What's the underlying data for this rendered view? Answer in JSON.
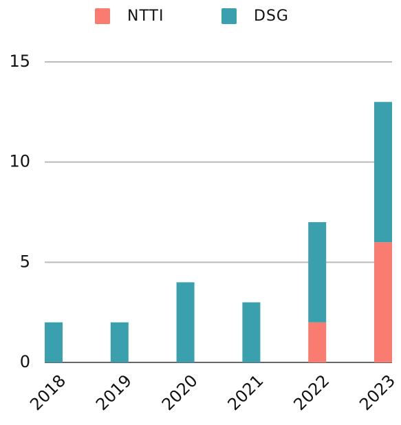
{
  "chart_data": {
    "type": "stacked_bar",
    "categories": [
      "2018",
      "2019",
      "2020",
      "2021",
      "2022",
      "2023"
    ],
    "series": [
      {
        "name": "NTTI",
        "color": "#fa7b6f",
        "values": [
          0,
          0,
          0,
          0,
          2,
          6
        ]
      },
      {
        "name": "DSG",
        "color": "#3aa0ad",
        "values": [
          2,
          2,
          4,
          3,
          5,
          7
        ]
      }
    ],
    "ylim": [
      0,
      15
    ],
    "yticks": [
      0,
      5,
      10,
      15
    ],
    "grid": true,
    "legend": "top"
  }
}
